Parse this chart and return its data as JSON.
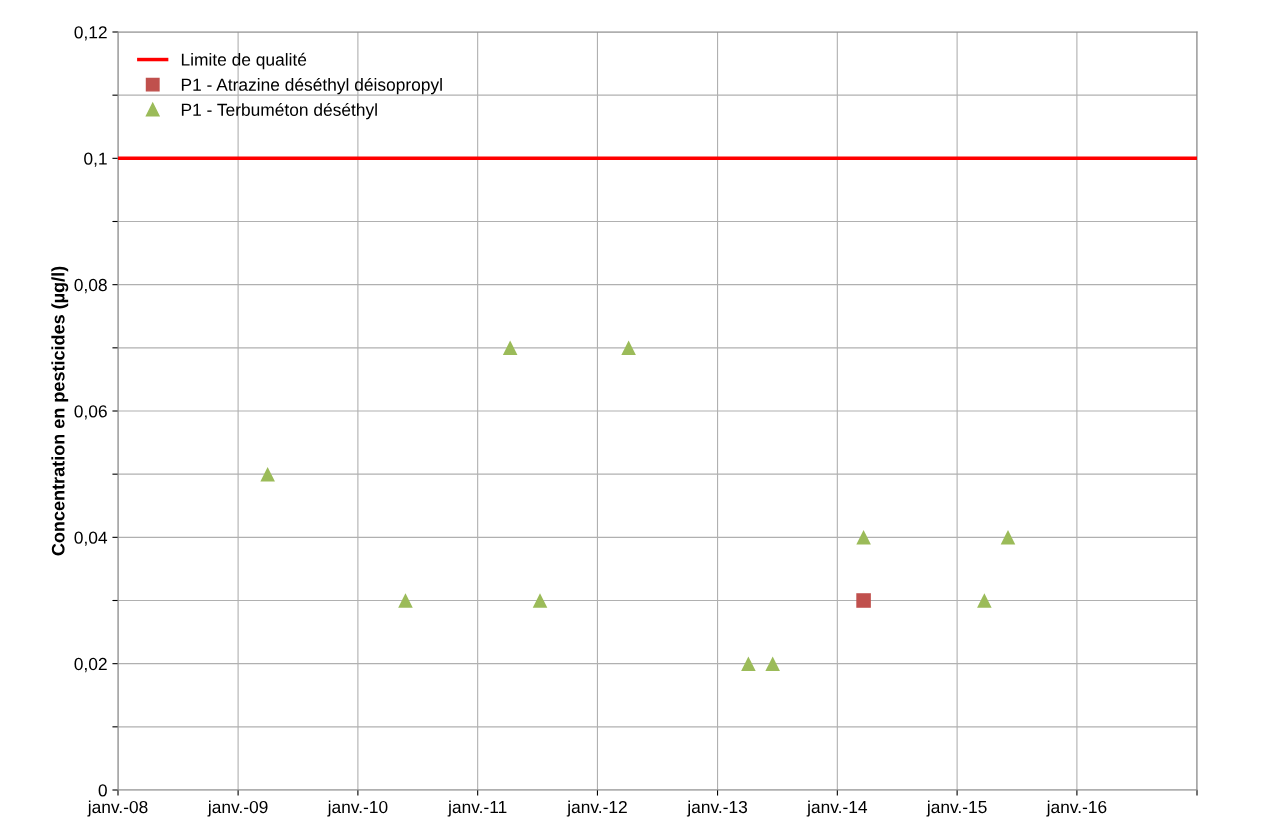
{
  "chart_data": {
    "type": "scatter",
    "ylabel": "Concentration en pesticides (µg/l)",
    "series": [
      {
        "name": "P1 - Atrazine déséthyl déisopropyl",
        "marker": "square",
        "color": "#c0504d",
        "x": [
          "2014-03-22"
        ],
        "values": [
          0.03
        ]
      },
      {
        "name": "P1 - Terbuméton déséthyl",
        "marker": "triangle",
        "color": "#9bbb59",
        "x": [
          "2009-04-01",
          "2010-05-26",
          "2011-04-10",
          "2011-07-10",
          "2012-04-05",
          "2013-04-05",
          "2013-06-18",
          "2014-03-22",
          "2015-03-25",
          "2015-06-05"
        ],
        "values": [
          0.05,
          0.03,
          0.07,
          0.03,
          0.07,
          0.02,
          0.02,
          0.04,
          0.03,
          0.04
        ]
      }
    ],
    "ref_lines": [
      {
        "axis": "y",
        "value": 0.1,
        "label": "Limite de qualité",
        "color": "#ff0000",
        "line_style": "solid"
      }
    ],
    "xlim": [
      "2008-01-01",
      "2017-01-01"
    ],
    "xticks": [
      {
        "value": "2008-01-01",
        "label": "janv.-08"
      },
      {
        "value": "2009-01-01",
        "label": "janv.-09"
      },
      {
        "value": "2010-01-01",
        "label": "janv.-10"
      },
      {
        "value": "2011-01-01",
        "label": "janv.-11"
      },
      {
        "value": "2012-01-01",
        "label": "janv.-12"
      },
      {
        "value": "2013-01-01",
        "label": "janv.-13"
      },
      {
        "value": "2014-01-01",
        "label": "janv.-14"
      },
      {
        "value": "2015-01-01",
        "label": "janv.-15"
      },
      {
        "value": "2016-01-01",
        "label": "janv.-16"
      },
      {
        "value": "2017-01-01",
        "label": null
      }
    ],
    "ylim": [
      0,
      0.12
    ],
    "yticks": [
      {
        "value": 0,
        "label": "0"
      },
      {
        "value": 0.01,
        "label": null
      },
      {
        "value": 0.02,
        "label": "0,02"
      },
      {
        "value": 0.03,
        "label": null
      },
      {
        "value": 0.04,
        "label": "0,04"
      },
      {
        "value": 0.05,
        "label": null
      },
      {
        "value": 0.06,
        "label": "0,06"
      },
      {
        "value": 0.07,
        "label": null
      },
      {
        "value": 0.08,
        "label": "0,08"
      },
      {
        "value": 0.09,
        "label": null
      },
      {
        "value": 0.1,
        "label": "0,1"
      },
      {
        "value": 0.11,
        "label": null
      },
      {
        "value": 0.12,
        "label": "0,12"
      }
    ],
    "grid": true,
    "legend": "top left"
  }
}
